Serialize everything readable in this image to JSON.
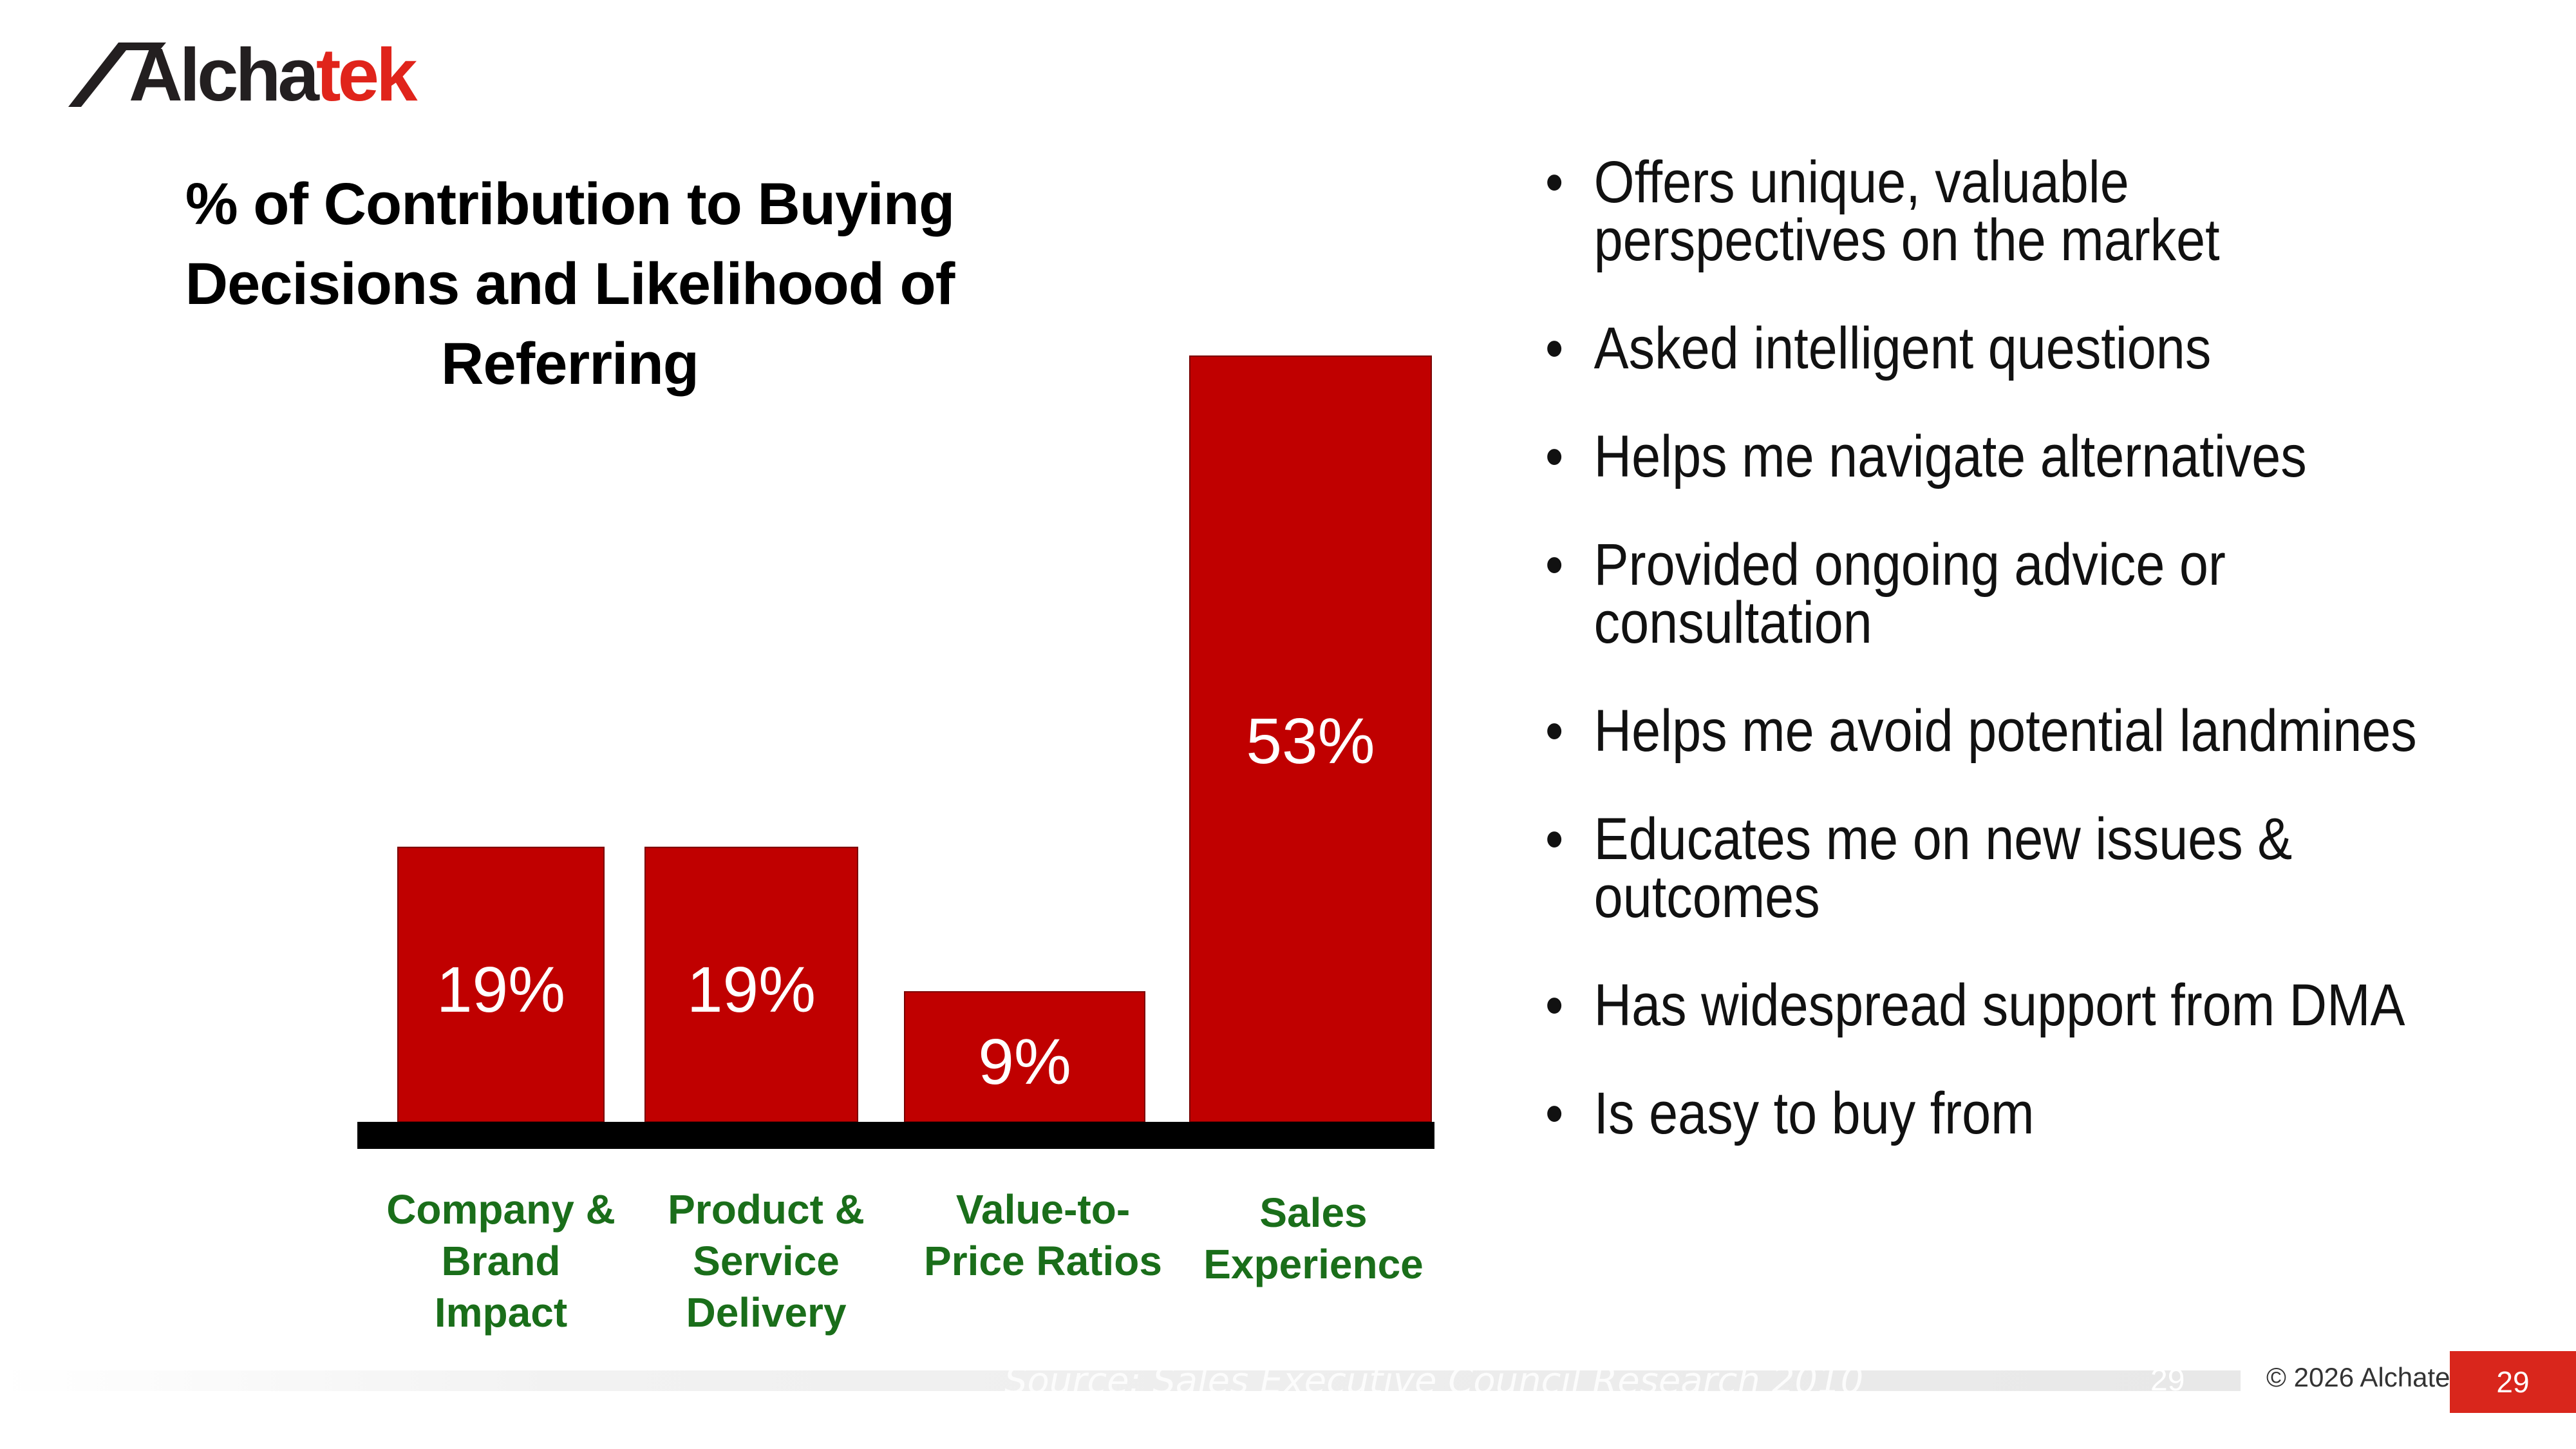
{
  "brand": {
    "name_dark": "Alcha",
    "name_red": "tek",
    "red": "#e0241b",
    "dark": "#231f20"
  },
  "bullets": [
    "Offers unique, valuable perspectives on the market",
    "Asked intelligent questions",
    "Helps me navigate alternatives",
    "Provided ongoing advice or consultation",
    "Helps me avoid potential landmines",
    "Educates me on new issues & outcomes",
    "Has widespread support from DMA",
    "Is easy to buy from"
  ],
  "bullet_symbol": "•",
  "footer": {
    "source": "Source: Sales Executive Council Research 2010",
    "ghost_page": "29",
    "copyright": "© 2026 Alchatek",
    "page_number": "29"
  },
  "colors": {
    "bar": "#c00000",
    "baseline": "#000000",
    "category_label": "#1a6e1a",
    "value_label": "#ffffff",
    "page_badge": "#d9261c"
  },
  "chart_data": {
    "type": "bar",
    "title": "% of Contribution to Buying Decisions and Likelihood of Referring",
    "categories": [
      [
        "Company &",
        "Brand",
        "Impact"
      ],
      [
        "Product &",
        "Service",
        "Delivery"
      ],
      [
        "Value-to-",
        "Price Ratios"
      ],
      [
        "Sales",
        "Experience"
      ]
    ],
    "values": [
      19,
      19,
      9,
      53
    ],
    "value_labels": [
      "19%",
      "19%",
      "9%",
      "53%"
    ],
    "xlabel": "",
    "ylabel": "",
    "ylim": [
      0,
      53
    ],
    "grid": false,
    "legend": "none"
  }
}
